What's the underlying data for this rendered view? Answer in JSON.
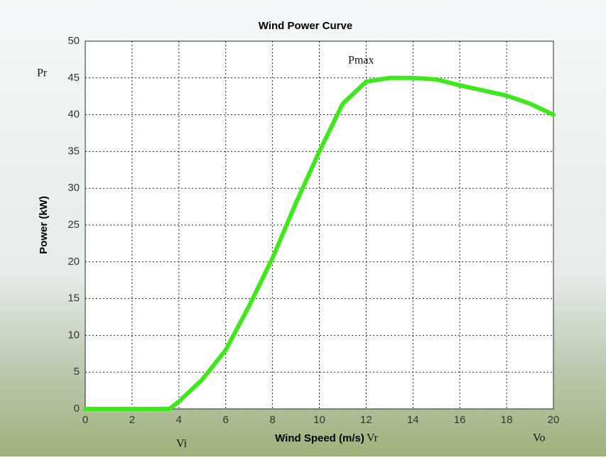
{
  "chart_data": {
    "type": "line",
    "title": "Wind Power Curve",
    "x_label": "Wind Speed (m/s)",
    "y_label": "Power (kW)",
    "x": [
      0,
      3.6,
      4,
      5,
      6,
      7,
      8,
      9,
      10,
      11,
      12,
      13,
      14,
      15,
      16,
      17,
      18,
      19,
      20
    ],
    "series": [
      {
        "name": "Power",
        "color": "#3ee81a",
        "values": [
          0,
          0,
          1,
          4,
          8,
          14,
          20.5,
          28,
          35,
          41.5,
          44.5,
          45,
          45,
          44.8,
          44,
          43.3,
          42.6,
          41.5,
          40
        ]
      }
    ],
    "xlim": [
      0,
      20
    ],
    "ylim": [
      0,
      50
    ],
    "xticks": [
      0,
      2,
      4,
      6,
      8,
      10,
      12,
      14,
      16,
      18,
      20
    ],
    "yticks": [
      0,
      5,
      10,
      15,
      20,
      25,
      30,
      35,
      40,
      45,
      50
    ],
    "grid": true,
    "annotations": [
      "Pr",
      "Pmax",
      "Vi",
      "Vr",
      "Vo"
    ]
  }
}
